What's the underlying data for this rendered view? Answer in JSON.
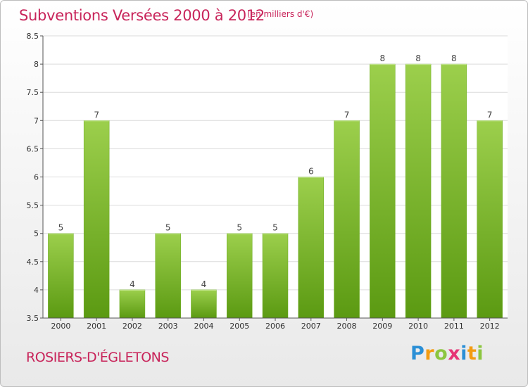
{
  "chart_data": {
    "type": "bar",
    "title": "Subventions Versées 2000 à 2012",
    "unit_note": "(en milliers d'€)",
    "categories": [
      "2000",
      "2001",
      "2002",
      "2003",
      "2004",
      "2005",
      "2006",
      "2007",
      "2008",
      "2009",
      "2010",
      "2011",
      "2012"
    ],
    "values": [
      5,
      7,
      4,
      5,
      4,
      5,
      5,
      6,
      7,
      8,
      8,
      8,
      7
    ],
    "data_labels": [
      "5",
      "7",
      "4",
      "5",
      "4",
      "5",
      "5",
      "6",
      "7",
      "8",
      "8",
      "8",
      "7"
    ],
    "y_ticks": [
      "3.5",
      "4",
      "4.5",
      "5",
      "5.5",
      "6",
      "6.5",
      "7",
      "7.5",
      "8",
      "8.5"
    ],
    "ylim": [
      3.5,
      8.5
    ],
    "grid": true,
    "bar_color_top": "#9ccf4c",
    "bar_color_bottom": "#5b9a12"
  },
  "footer": {
    "commune": "ROSIERS-D'ÉGLETONS"
  },
  "logo": {
    "text": "Proxiti",
    "letters": [
      {
        "char": "P",
        "color": "#2a8fd6"
      },
      {
        "char": "r",
        "color": "#f39c12"
      },
      {
        "char": "o",
        "color": "#8cc63f"
      },
      {
        "char": "x",
        "color": "#e63375"
      },
      {
        "char": "i",
        "color": "#2a8fd6"
      },
      {
        "char": "t",
        "color": "#f39c12"
      },
      {
        "char": "i",
        "color": "#8cc63f"
      }
    ]
  }
}
